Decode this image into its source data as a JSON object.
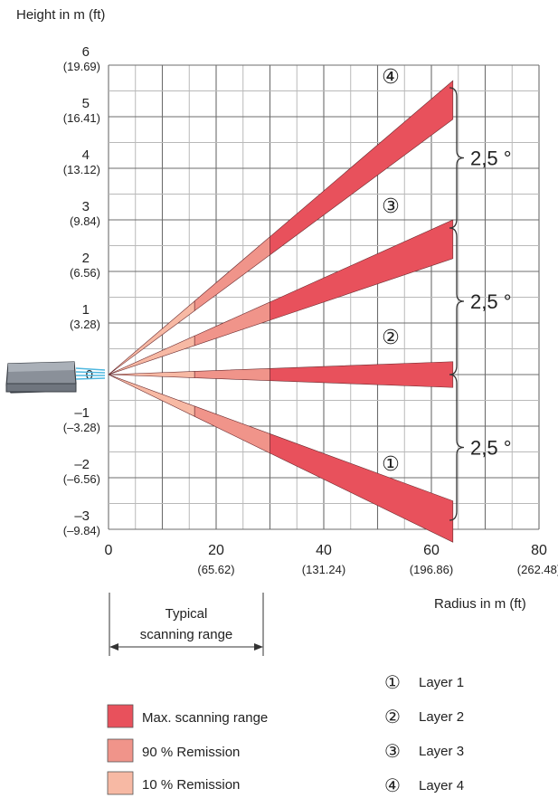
{
  "chart_data": {
    "type": "area",
    "ylabel": "Height in m (ft)",
    "xlabel": "Radius in m (ft)",
    "xlim": [
      0,
      80
    ],
    "ylim": [
      -3,
      6
    ],
    "x_ticks": [
      {
        "value": 0,
        "m": "0",
        "ft": ""
      },
      {
        "value": 20,
        "m": "20",
        "ft": "(65.62)"
      },
      {
        "value": 40,
        "m": "40",
        "ft": "(131.24)"
      },
      {
        "value": 60,
        "m": "60",
        "ft": "(196.86)"
      },
      {
        "value": 80,
        "m": "80",
        "ft": "(262.48)"
      }
    ],
    "y_ticks": [
      {
        "value": 6,
        "m": "6",
        "ft": "(19.69)"
      },
      {
        "value": 5,
        "m": "5",
        "ft": "(16.41)"
      },
      {
        "value": 4,
        "m": "4",
        "ft": "(13.12)"
      },
      {
        "value": 3,
        "m": "3",
        "ft": "(9.84)"
      },
      {
        "value": 2,
        "m": "2",
        "ft": "(6.56)"
      },
      {
        "value": 1,
        "m": "1",
        "ft": "(3.28)"
      },
      {
        "value": 0,
        "m": "0",
        "ft": ""
      },
      {
        "value": -1,
        "m": "–1",
        "ft": "(–3.28)"
      },
      {
        "value": -2,
        "m": "–2",
        "ft": "(–6.56)"
      },
      {
        "value": -3,
        "m": "–3",
        "ft": "(–9.84)"
      }
    ],
    "grid": true,
    "range_segments": [
      {
        "name": "10 % Remission",
        "x_from": 0,
        "x_to": 16,
        "color": "#f7b9a4"
      },
      {
        "name": "90 % Remission",
        "x_from": 16,
        "x_to": 30,
        "color": "#f0948a"
      },
      {
        "name": "Max. scanning range",
        "x_from": 30,
        "x_to": 64,
        "color": "#e8515c"
      }
    ],
    "layers": [
      {
        "marker": "④",
        "name": "Layer 4",
        "y_upper_at_end": 5.7,
        "y_lower_at_end": 4.95
      },
      {
        "marker": "③",
        "name": "Layer 3",
        "y_upper_at_end": 3.0,
        "y_lower_at_end": 2.25
      },
      {
        "marker": "②",
        "name": "Layer 2",
        "y_upper_at_end": 0.25,
        "y_lower_at_end": -0.25
      },
      {
        "marker": "①",
        "name": "Layer 1",
        "y_upper_at_end": -2.45,
        "y_lower_at_end": -3.25
      }
    ],
    "angle_annotations": [
      "2,5 °",
      "2,5 °",
      "2,5 °"
    ],
    "typical_range": {
      "label_line1": "Typical",
      "label_line2": "scanning range",
      "x_from": 0,
      "x_to": 30
    },
    "legend_ranges": [
      {
        "label": "Max. scanning range",
        "color": "#e8515c"
      },
      {
        "label": "90 % Remission",
        "color": "#f0948a"
      },
      {
        "label": "10 % Remission",
        "color": "#f7b9a4"
      }
    ],
    "legend_layers": [
      {
        "marker": "①",
        "label": "Layer 1"
      },
      {
        "marker": "②",
        "label": "Layer 2"
      },
      {
        "marker": "③",
        "label": "Layer 3"
      },
      {
        "marker": "④",
        "label": "Layer 4"
      }
    ]
  }
}
